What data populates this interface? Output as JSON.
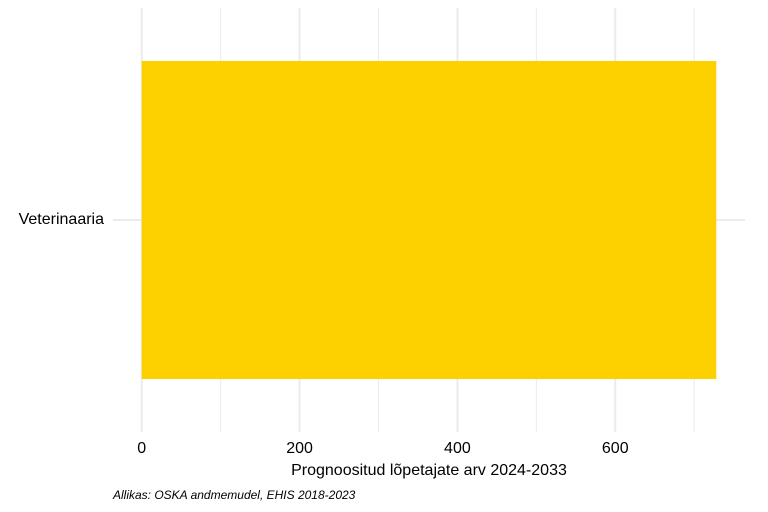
{
  "chart_data": {
    "type": "bar",
    "orientation": "horizontal",
    "categories": [
      "Veterinaaria"
    ],
    "values": [
      728
    ],
    "color": "#fdd000",
    "xlabel": "Prognoositud lõpetajate arv 2024-2033",
    "caption": "Allikas: OSKA andmemudel, EHIS 2018-2023",
    "xlim": [
      -36.4,
      764.4
    ],
    "xticks": [
      0,
      200,
      400,
      600
    ],
    "minor_xticks": [
      100,
      300,
      500,
      700
    ],
    "grid": true,
    "grid_color": "#ebebeb"
  }
}
